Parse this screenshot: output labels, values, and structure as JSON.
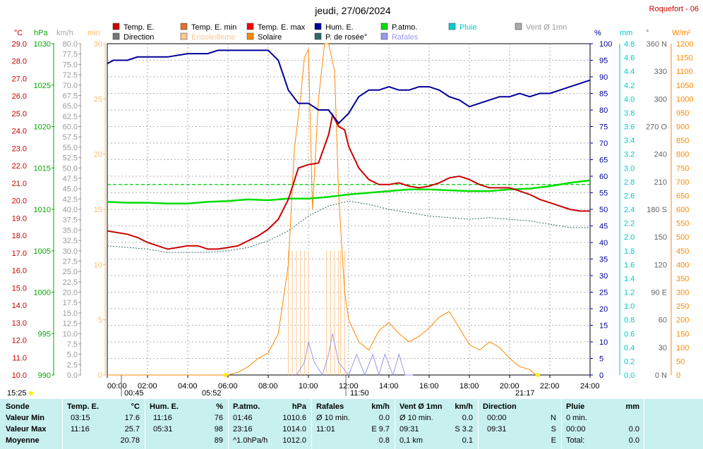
{
  "header": {
    "title": "jeudi, 27/06/2024",
    "station": "Roquefort - 06"
  },
  "legend": [
    {
      "label": "Temp. E.",
      "color": "#cc0000"
    },
    {
      "label": "Temp. E. min",
      "color": "#e07030"
    },
    {
      "label": "Temp. E. max",
      "color": "#ff0000"
    },
    {
      "label": "Hum. E.",
      "color": "#000099"
    },
    {
      "label": "P.atmo.",
      "color": "#00dd00"
    },
    {
      "label": "Pluie",
      "color": "#00cccc"
    },
    {
      "label": "Vent Ø 1mn",
      "color": "#aaaaaa"
    },
    {
      "label": "Direction",
      "color": "#777777"
    },
    {
      "label": "Ensoleilleme",
      "color": "#ffc890"
    },
    {
      "label": "Solaire",
      "color": "#ff8800"
    },
    {
      "label": "P. de rosée°",
      "color": "#336666"
    },
    {
      "label": "Rafales",
      "color": "#9999ee"
    }
  ],
  "axes": {
    "units": {
      "temp": "°C",
      "hpa": "hPa",
      "kmh": "km/h",
      "min": "min",
      "pct": "%",
      "mm": "mm",
      "deg": "°",
      "wm2": "W/m²"
    },
    "temp_ticks": [
      "29.0",
      "28.0",
      "27.0",
      "26.0",
      "25.0",
      "24.0",
      "23.0",
      "22.0",
      "21.0",
      "20.0",
      "19.0",
      "18.0",
      "17.0",
      "16.0",
      "15.0",
      "14.0",
      "13.0",
      "12.0",
      "11.0",
      "10.0"
    ],
    "hpa_ticks": [
      "1030",
      "1025",
      "1020",
      "1015",
      "1010",
      "1005",
      "1000",
      "995",
      "990"
    ],
    "kmh_ticks": [
      "80.0",
      "77.5",
      "75.0",
      "72.5",
      "70.0",
      "67.5",
      "65.0",
      "62.5",
      "60.0",
      "57.5",
      "55.0",
      "52.5",
      "50.0",
      "47.5",
      "45.0",
      "42.5",
      "40.0",
      "37.5",
      "35.0",
      "32.5",
      "30.0",
      "27.5",
      "25.0",
      "22.5",
      "20.0",
      "17.5",
      "15.0",
      "12.5",
      "10.0",
      "7.5",
      "5.0",
      "2.5",
      "0.0"
    ],
    "min_ticks": [
      "30",
      "25",
      "20",
      "15",
      "10",
      "5",
      "0"
    ],
    "pct_ticks": [
      "100",
      "95",
      "90",
      "85",
      "80",
      "75",
      "70",
      "65",
      "60",
      "55",
      "50",
      "45",
      "40",
      "35",
      "30",
      "25",
      "20",
      "15",
      "10",
      "5",
      "0"
    ],
    "mm_ticks": [
      "4.8",
      "4.6",
      "4.4",
      "4.2",
      "4.0",
      "3.8",
      "3.6",
      "3.4",
      "3.2",
      "3.0",
      "2.8",
      "2.6",
      "2.4",
      "2.2",
      "2.0",
      "1.8",
      "1.6",
      "1.4",
      "1.2",
      "1.0",
      "0.8",
      "0.6",
      "0.4",
      "0.2",
      "0.0"
    ],
    "deg_ticks": [
      "360 N",
      "330",
      "300",
      "270 O",
      "240",
      "210",
      "180 S",
      "150",
      "120",
      "90 E",
      "60",
      "30",
      "0 N"
    ],
    "wm2_ticks": [
      "1200",
      "1150",
      "1100",
      "1050",
      "1000",
      "950",
      "900",
      "850",
      "800",
      "750",
      "700",
      "650",
      "600",
      "550",
      "500",
      "450",
      "400",
      "350",
      "300",
      "250",
      "200",
      "150",
      "100",
      "50",
      "0"
    ],
    "x_ticks": [
      "00:00",
      "02:00",
      "04:00",
      "06:00",
      "08:00",
      "10:00",
      "12:00",
      "14:00",
      "16:00",
      "18:00",
      "20:00",
      "22:00",
      "24:00"
    ]
  },
  "markers": {
    "left_time": "15:25",
    "sunrise_like": "00:45",
    "sunrise": "05:52",
    "noon": "11:50",
    "sunset": "21:17"
  },
  "chart_data": {
    "type": "line",
    "title": "jeudi, 27/06/2024",
    "x_unit": "hours",
    "xlim": [
      0,
      24
    ],
    "series": [
      {
        "name": "Temp. E.",
        "unit": "°C",
        "color": "#cc0000",
        "x": [
          0,
          1,
          1.5,
          2,
          2.5,
          3,
          3.5,
          4,
          4.5,
          5,
          5.5,
          6,
          6.5,
          7,
          7.5,
          8,
          8.5,
          9,
          9.5,
          10,
          10.5,
          11,
          11.2,
          11.5,
          11.8,
          12,
          12.5,
          13,
          13.5,
          14,
          14.5,
          15,
          15.5,
          16,
          16.5,
          17,
          17.5,
          18,
          18.5,
          19,
          19.5,
          20,
          20.5,
          21,
          21.5,
          22,
          22.5,
          23,
          23.5,
          24
        ],
        "y": [
          18.7,
          18.5,
          18.3,
          18.0,
          17.8,
          17.6,
          17.7,
          17.8,
          17.8,
          17.6,
          17.6,
          17.7,
          17.8,
          18.1,
          18.4,
          18.8,
          19.4,
          20.6,
          22.5,
          22.7,
          22.8,
          24.5,
          25.7,
          25.0,
          24.8,
          23.8,
          22.5,
          21.8,
          21.5,
          21.5,
          21.6,
          21.4,
          21.3,
          21.4,
          21.6,
          21.9,
          22.0,
          21.8,
          21.5,
          21.3,
          21.3,
          21.3,
          21.1,
          20.9,
          20.6,
          20.4,
          20.2,
          20.0,
          19.9,
          19.9
        ]
      },
      {
        "name": "Hum. E.",
        "unit": "%",
        "color": "#000099",
        "x": [
          0,
          0.3,
          1,
          1.5,
          2,
          3,
          4,
          5,
          5.5,
          6,
          7,
          8,
          8.5,
          9,
          9.5,
          10,
          10.5,
          11,
          11.5,
          12,
          12.5,
          13,
          13.5,
          14,
          14.5,
          15,
          15.5,
          16,
          16.5,
          17,
          17.5,
          18,
          18.5,
          19,
          19.5,
          20,
          20.5,
          21,
          21.5,
          22,
          22.5,
          23,
          23.5,
          24
        ],
        "y": [
          94,
          95,
          95,
          96,
          96,
          96,
          97,
          97,
          98,
          98,
          98,
          98,
          95,
          86,
          82,
          82,
          80,
          80,
          76,
          79,
          84,
          86,
          86,
          87,
          86,
          86,
          87,
          87,
          86,
          84,
          83,
          81,
          82,
          83,
          84,
          84,
          85,
          84,
          85,
          85,
          86,
          87,
          88,
          89
        ]
      },
      {
        "name": "P.atmo.",
        "unit": "hPa",
        "color": "#00dd00",
        "x": [
          0,
          1,
          2,
          3,
          4,
          5,
          6,
          7,
          8,
          9,
          10,
          11,
          12,
          13,
          14,
          15,
          16,
          17,
          18,
          19,
          20,
          21,
          22,
          23,
          24
        ],
        "y": [
          1010.9,
          1010.8,
          1010.8,
          1010.7,
          1010.7,
          1010.9,
          1011.0,
          1011.2,
          1011.1,
          1011.3,
          1011.3,
          1011.5,
          1011.8,
          1012.0,
          1012.2,
          1012.4,
          1012.4,
          1012.3,
          1012.2,
          1012.2,
          1012.4,
          1012.5,
          1012.8,
          1013.2,
          1013.5
        ]
      },
      {
        "name": "P. de rosée°",
        "unit": "°C",
        "color": "#336666",
        "x": [
          0,
          2,
          3,
          4,
          5,
          6,
          7,
          8,
          9,
          10,
          11,
          12,
          13,
          14,
          15,
          16,
          17,
          18,
          19,
          20,
          21,
          22,
          23,
          24
        ],
        "y": [
          17.8,
          17.6,
          17.4,
          17.4,
          17.4,
          17.5,
          17.7,
          18.1,
          18.7,
          19.6,
          20.2,
          20.5,
          20.3,
          20.0,
          19.8,
          19.6,
          19.5,
          19.4,
          19.5,
          19.4,
          19.3,
          19.1,
          18.9,
          18.9
        ]
      },
      {
        "name": "Solaire",
        "unit": "W/m²",
        "color": "#ff8800",
        "x": [
          0,
          6,
          6.5,
          7,
          7.5,
          8,
          8.5,
          9,
          9.3,
          9.6,
          9.8,
          10,
          10.2,
          10.5,
          10.8,
          11,
          11.3,
          11.5,
          11.8,
          12,
          12.5,
          13,
          13.5,
          14,
          14.5,
          15,
          15.5,
          16,
          16.5,
          17,
          17.5,
          18,
          18.5,
          19,
          19.5,
          20,
          20.5,
          21,
          21.3
        ],
        "y": [
          0,
          0,
          10,
          30,
          60,
          80,
          150,
          400,
          820,
          1000,
          1150,
          1180,
          600,
          1000,
          1200,
          1200,
          1100,
          650,
          300,
          200,
          120,
          90,
          160,
          190,
          150,
          120,
          140,
          170,
          210,
          230,
          170,
          110,
          90,
          120,
          100,
          60,
          30,
          20,
          0
        ]
      },
      {
        "name": "Rafales",
        "unit": "km/h",
        "color": "#9999ee",
        "x": [
          9.4,
          9.8,
          10.0,
          10.3,
          10.7,
          11.0,
          11.2,
          11.5,
          12.0,
          12.4,
          12.8,
          13.2,
          13.5,
          13.8,
          14.2,
          14.5,
          14.8,
          15.2
        ],
        "y": [
          0,
          3,
          8,
          3,
          0,
          5,
          10,
          3,
          0,
          5,
          0,
          5,
          0,
          5,
          0,
          5,
          0,
          0
        ]
      }
    ],
    "ylim_temp": [
      10,
      30
    ],
    "ylim_hpa": [
      990,
      1030
    ],
    "ylim_pct": [
      0,
      100
    ],
    "ylim_wm2": [
      0,
      1200
    ],
    "ylim_kmh": [
      0,
      80
    ],
    "threshold_level_hpa": 1013
  },
  "stats": {
    "headers": [
      "Sonde",
      "Temp. E.",
      "°C",
      "Hum. E.",
      "%",
      "P.atmo.",
      "hPa",
      "Rafales",
      "km/h",
      "Vent Ø 1mn",
      "km/h",
      "Direction",
      "Pluie",
      "mm"
    ],
    "rows": [
      {
        "label": "Valeur Min",
        "temp_time": "03:15",
        "temp": "17.6",
        "hum_time": "11:16",
        "hum": "76",
        "p_time": "01:46",
        "p": "1010.6",
        "raf_a": "Ø 10 min.",
        "raf": "0.0",
        "vent_a": "Ø 10 min.",
        "vent": "0.0",
        "dir_time": "00:00",
        "dir": "N",
        "pluie_a": "0 min.",
        "pluie": ""
      },
      {
        "label": "Valeur Max",
        "temp_time": "11:16",
        "temp": "25.7",
        "hum_time": "05:31",
        "hum": "98",
        "p_time": "23:16",
        "p": "1014.0",
        "raf_a": "11:01",
        "raf": "E 9.7",
        "vent_a": "09:31",
        "vent": "S 3.2",
        "dir_time": "09:31",
        "dir": "S",
        "pluie_a": "00:00",
        "pluie": "0.0"
      },
      {
        "label": "Moyenne",
        "temp_time": "",
        "temp": "20.78",
        "hum_time": "",
        "hum": "89",
        "p_time": "^1.0hPa/h",
        "p": "1012.0",
        "raf_a": "",
        "raf": "0.8",
        "vent_a": "0,1 km",
        "vent": "0.1",
        "dir_time": "",
        "dir": "E",
        "pluie_a": "Total:",
        "pluie": "0.0"
      }
    ]
  }
}
